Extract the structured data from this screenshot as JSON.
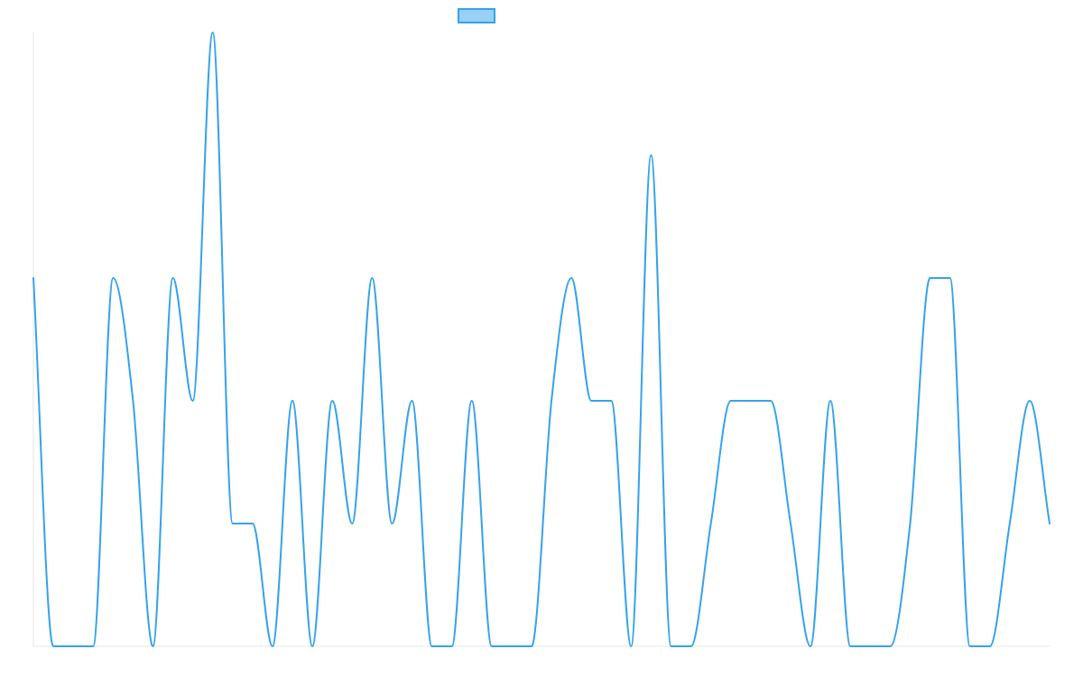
{
  "chart_data": {
    "type": "line",
    "title": "",
    "xlabel": "",
    "ylabel": "",
    "grid": false,
    "legend": "top-center",
    "ylim": [
      0,
      5
    ],
    "x": [
      0,
      1,
      2,
      3,
      4,
      5,
      6,
      7,
      8,
      9,
      10,
      11,
      12,
      13,
      14,
      15,
      16,
      17,
      18,
      19,
      20,
      21,
      22,
      23,
      24,
      25,
      26,
      27,
      28,
      29,
      30,
      31,
      32,
      33,
      34,
      35,
      36,
      37,
      38,
      39,
      40,
      41,
      42,
      43,
      44,
      45,
      46,
      47,
      48,
      49,
      50,
      51
    ],
    "series": [
      {
        "color": "#36a2eb",
        "fill": "#9ad0f5",
        "values": [
          3,
          0,
          0,
          0,
          3,
          2,
          0,
          3,
          2,
          5,
          1,
          1,
          0,
          2,
          0,
          2,
          1,
          3,
          1,
          2,
          0,
          0,
          2,
          0,
          0,
          0,
          2,
          3,
          2,
          2,
          0,
          4,
          0,
          0,
          1,
          2,
          2,
          2,
          1,
          0,
          2,
          0,
          0,
          0,
          1,
          3,
          3,
          0,
          0,
          1,
          2,
          1
        ]
      }
    ]
  }
}
